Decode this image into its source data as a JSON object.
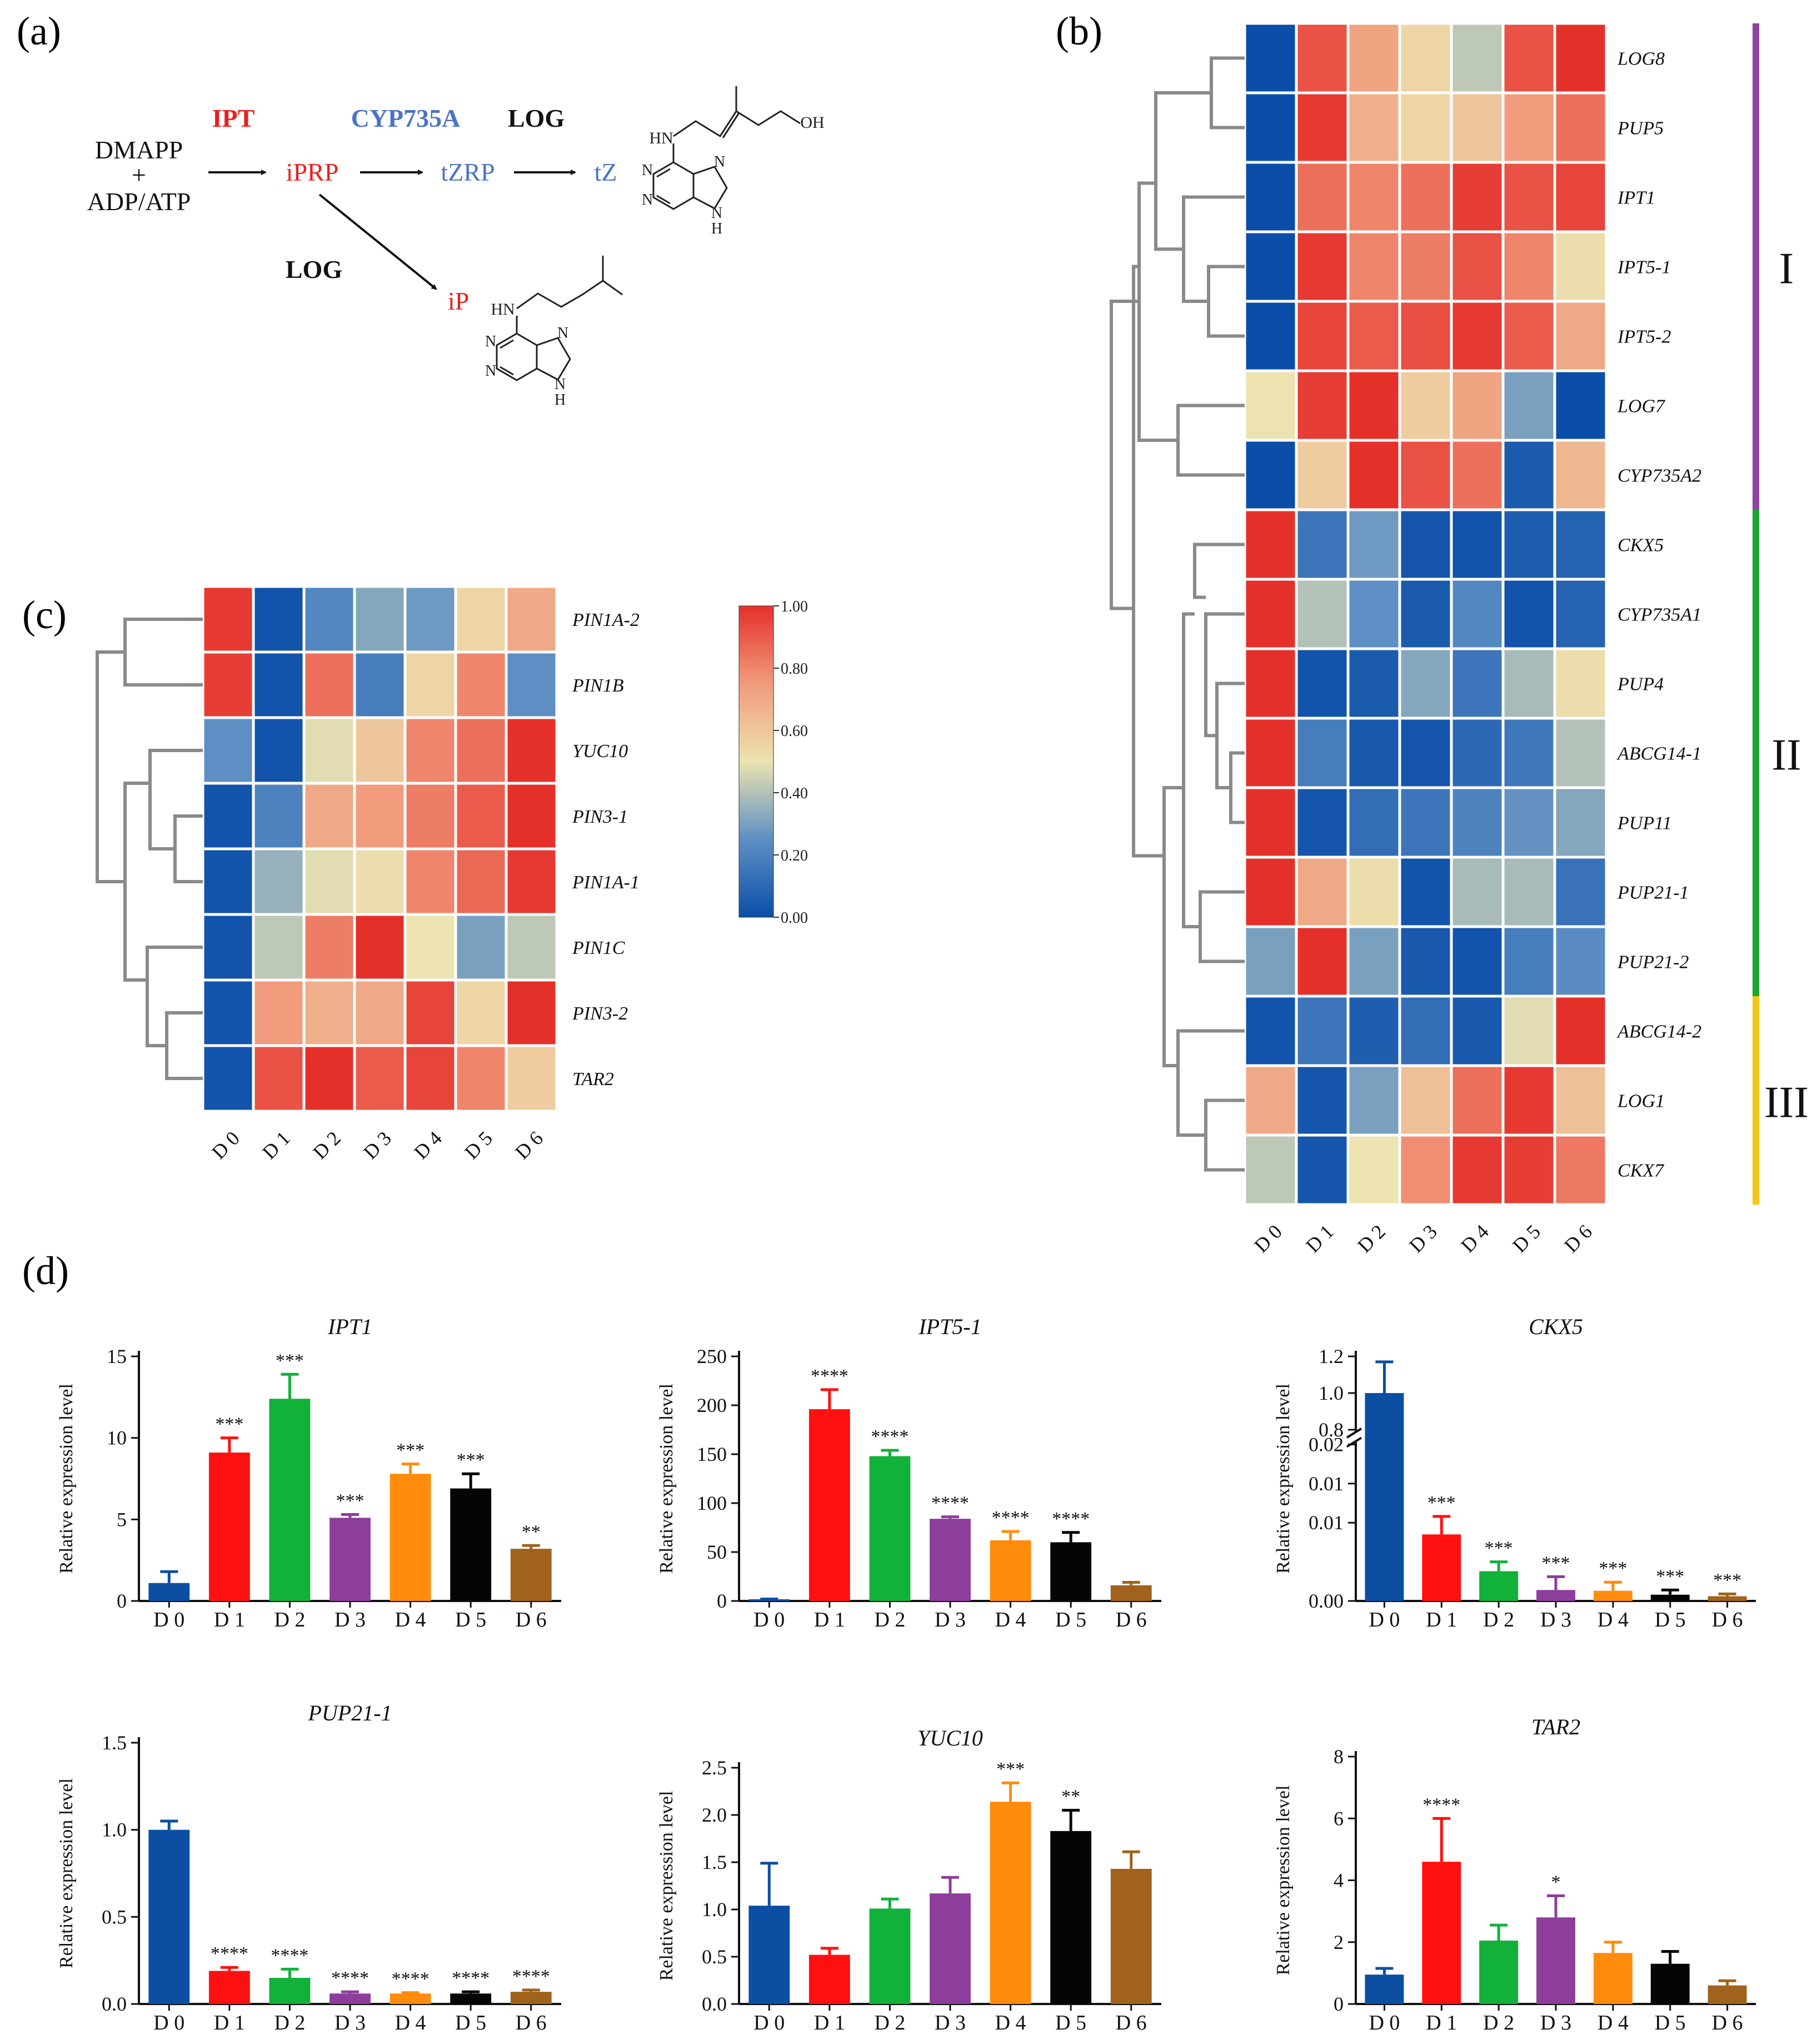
{
  "panel_labels": {
    "a": "(a)",
    "b": "(b)",
    "c": "(c)",
    "d": "(d)"
  },
  "pathway": {
    "substrate_line1": "DMAPP",
    "substrate_plus": "+",
    "substrate_line2": "ADP/ATP",
    "ipt": "IPT",
    "iprp": "iPRP",
    "cyp": "CYP735A",
    "tzrp": "tZRP",
    "log_top": "LOG",
    "tz": "tZ",
    "log_bottom": "LOG",
    "ip": "iP",
    "atom_hn": "HN",
    "atom_oh": "OH",
    "atom_n": "N",
    "atom_h": "H",
    "colors": {
      "red": "#e8201e",
      "blue": "#4a74c4",
      "black": "#111111"
    }
  },
  "colorbar": {
    "ticks": [
      "1.00",
      "0.80",
      "0.60",
      "0.40",
      "0.20",
      "0.00"
    ],
    "min": 0,
    "max": 1
  },
  "chart_data": [
    {
      "id": "b",
      "type": "heatmap",
      "x_labels": [
        "D 0",
        "D 1",
        "D 2",
        "D 3",
        "D 4",
        "D 5",
        "D 6"
      ],
      "rows": [
        {
          "gene": "LOG8",
          "values": [
            0.0,
            0.92,
            0.72,
            0.55,
            0.42,
            0.92,
            1.0
          ]
        },
        {
          "gene": "PUP5",
          "values": [
            0.0,
            0.98,
            0.68,
            0.55,
            0.6,
            0.75,
            0.85
          ]
        },
        {
          "gene": "IPT1",
          "values": [
            0.0,
            0.85,
            0.8,
            0.85,
            0.97,
            0.92,
            0.95
          ]
        },
        {
          "gene": "IPT5-1",
          "values": [
            0.0,
            0.98,
            0.8,
            0.82,
            0.92,
            0.8,
            0.52
          ]
        },
        {
          "gene": "IPT5-2",
          "values": [
            0.0,
            0.95,
            0.9,
            0.93,
            0.98,
            0.9,
            0.7
          ]
        },
        {
          "gene": "LOG7",
          "values": [
            0.5,
            0.97,
            1.0,
            0.58,
            0.72,
            0.3,
            0.0
          ]
        },
        {
          "gene": "CYP735A2",
          "values": [
            0.0,
            0.58,
            1.0,
            0.92,
            0.85,
            0.05,
            0.65
          ]
        },
        {
          "gene": "CKX5",
          "values": [
            1.0,
            0.15,
            0.28,
            0.03,
            0.02,
            0.06,
            0.08
          ]
        },
        {
          "gene": "CYP735A1",
          "values": [
            1.0,
            0.4,
            0.25,
            0.05,
            0.22,
            0.02,
            0.08
          ]
        },
        {
          "gene": "PUP4",
          "values": [
            1.0,
            0.02,
            0.05,
            0.32,
            0.15,
            0.38,
            0.52
          ]
        },
        {
          "gene": "ABCG14-1",
          "values": [
            1.0,
            0.18,
            0.04,
            0.03,
            0.1,
            0.16,
            0.4
          ]
        },
        {
          "gene": "PUP11",
          "values": [
            1.0,
            0.03,
            0.12,
            0.15,
            0.2,
            0.26,
            0.32
          ]
        },
        {
          "gene": "PUP21-1",
          "values": [
            1.0,
            0.7,
            0.52,
            0.02,
            0.38,
            0.38,
            0.14
          ]
        },
        {
          "gene": "PUP21-2",
          "values": [
            0.3,
            1.0,
            0.3,
            0.04,
            0.02,
            0.18,
            0.24
          ]
        },
        {
          "gene": "ABCG14-2",
          "values": [
            0.02,
            0.15,
            0.06,
            0.12,
            0.04,
            0.48,
            1.0
          ]
        },
        {
          "gene": "LOG1",
          "values": [
            0.7,
            0.03,
            0.3,
            0.62,
            0.85,
            0.98,
            0.62
          ]
        },
        {
          "gene": "CKX7",
          "values": [
            0.42,
            0.03,
            0.5,
            0.78,
            0.98,
            0.97,
            0.83
          ]
        }
      ],
      "clusters": [
        {
          "label": "I",
          "rows": [
            0,
            6
          ],
          "color": "#8e44a0"
        },
        {
          "label": "II",
          "rows": [
            7,
            13
          ],
          "color": "#1aa82e"
        },
        {
          "label": "III",
          "rows": [
            14,
            16
          ],
          "color": "#f5c518"
        }
      ]
    },
    {
      "id": "c",
      "type": "heatmap",
      "x_labels": [
        "D 0",
        "D 1",
        "D 2",
        "D 3",
        "D 4",
        "D 5",
        "D 6"
      ],
      "rows": [
        {
          "gene": "PIN1A-2",
          "values": [
            0.98,
            0.02,
            0.22,
            0.32,
            0.28,
            0.55,
            0.7
          ]
        },
        {
          "gene": "PIN1B",
          "values": [
            0.97,
            0.02,
            0.85,
            0.18,
            0.55,
            0.8,
            0.25
          ]
        },
        {
          "gene": "YUC10",
          "values": [
            0.25,
            0.02,
            0.48,
            0.6,
            0.8,
            0.85,
            1.0
          ]
        },
        {
          "gene": "PIN3-1",
          "values": [
            0.02,
            0.2,
            0.7,
            0.75,
            0.82,
            0.9,
            1.0
          ]
        },
        {
          "gene": "PIN1A-1",
          "values": [
            0.02,
            0.35,
            0.48,
            0.52,
            0.8,
            0.87,
            0.98
          ]
        },
        {
          "gene": "PIN1C",
          "values": [
            0.02,
            0.42,
            0.82,
            1.0,
            0.5,
            0.3,
            0.42
          ]
        },
        {
          "gene": "PIN3-2",
          "values": [
            0.02,
            0.75,
            0.68,
            0.7,
            0.95,
            0.55,
            1.0
          ]
        },
        {
          "gene": "TAR2",
          "values": [
            0.02,
            0.92,
            1.0,
            0.9,
            0.95,
            0.8,
            0.58
          ]
        }
      ]
    },
    {
      "id": "d-IPT1",
      "type": "bar",
      "title": "IPT1",
      "ylabel": "Relative expression level",
      "categories": [
        "D 0",
        "D 1",
        "D 2",
        "D 3",
        "D 4",
        "D 5",
        "D 6"
      ],
      "values": [
        1.1,
        9.1,
        12.4,
        5.1,
        7.8,
        6.9,
        3.2
      ],
      "errors": [
        0.7,
        0.9,
        1.5,
        0.2,
        0.6,
        0.9,
        0.2
      ],
      "significance": [
        "",
        "***",
        "***",
        "***",
        "***",
        "***",
        "**"
      ],
      "yticks": [
        "0",
        "5",
        "10",
        "15"
      ],
      "ylim": [
        0,
        15
      ]
    },
    {
      "id": "d-IPT5-1",
      "type": "bar",
      "title": "IPT5-1",
      "ylabel": "Relative expression level",
      "categories": [
        "D 0",
        "D 1",
        "D 2",
        "D 3",
        "D 4",
        "D 5",
        "D 6"
      ],
      "values": [
        1,
        196,
        148,
        84,
        62,
        60,
        16
      ],
      "errors": [
        1,
        20,
        6,
        2,
        9,
        10,
        3
      ],
      "significance": [
        "",
        "****",
        "****",
        "****",
        "****",
        "****",
        ""
      ],
      "yticks": [
        "0",
        "50",
        "100",
        "150",
        "200",
        "250"
      ],
      "ylim": [
        0,
        250
      ]
    },
    {
      "id": "d-CKX5",
      "type": "bar",
      "title": "CKX5",
      "ylabel": "Relative expression level",
      "categories": [
        "D 0",
        "D 1",
        "D 2",
        "D 3",
        "D 4",
        "D 5",
        "D 6"
      ],
      "values": [
        1.0,
        0.0085,
        0.0038,
        0.0014,
        0.0013,
        0.0008,
        0.0006
      ],
      "errors": [
        0.17,
        0.0023,
        0.0012,
        0.0017,
        0.0011,
        0.0006,
        0.0003
      ],
      "significance": [
        "",
        "***",
        "***",
        "***",
        "***",
        "***",
        "***"
      ],
      "yticks": [
        "1.2",
        "1.0",
        "0.8",
        "0.02",
        "0.01",
        "0.01",
        "0.00"
      ],
      "broken_axis": {
        "upper": [
          0.8,
          1.2
        ],
        "lower": [
          0,
          0.02
        ]
      }
    },
    {
      "id": "d-PUP21-1",
      "type": "bar",
      "title": "PUP21-1",
      "ylabel": "Relative expression level",
      "categories": [
        "D 0",
        "D 1",
        "D 2",
        "D 3",
        "D 4",
        "D 5",
        "D 6"
      ],
      "values": [
        1.0,
        0.19,
        0.15,
        0.06,
        0.06,
        0.06,
        0.07
      ],
      "errors": [
        0.05,
        0.02,
        0.05,
        0.01,
        0.005,
        0.01,
        0.01
      ],
      "significance": [
        "",
        "****",
        "****",
        "****",
        "****",
        "****",
        "****"
      ],
      "yticks": [
        "0.0",
        "0.5",
        "1.0",
        "1.5"
      ],
      "ylim": [
        0,
        1.5
      ]
    },
    {
      "id": "d-YUC10",
      "type": "bar",
      "title": "YUC10",
      "ylabel": "Relative expression level",
      "categories": [
        "D 0",
        "D 1",
        "D 2",
        "D 3",
        "D 4",
        "D 5",
        "D 6"
      ],
      "values": [
        1.04,
        0.52,
        1.01,
        1.17,
        2.14,
        1.83,
        1.43
      ],
      "errors": [
        0.45,
        0.07,
        0.1,
        0.17,
        0.2,
        0.22,
        0.18
      ],
      "significance": [
        "",
        "",
        "",
        "",
        "***",
        "**",
        ""
      ],
      "yticks": [
        "0.0",
        "0.5",
        "1.0",
        "1.5",
        "2.0",
        "2.5"
      ],
      "ylim": [
        0,
        2.5
      ]
    },
    {
      "id": "d-TAR2",
      "type": "bar",
      "title": "TAR2",
      "ylabel": "Relative expression level",
      "categories": [
        "D 0",
        "D 1",
        "D 2",
        "D 3",
        "D 4",
        "D 5",
        "D 6"
      ],
      "values": [
        0.95,
        4.6,
        2.05,
        2.8,
        1.65,
        1.3,
        0.6
      ],
      "errors": [
        0.2,
        1.4,
        0.5,
        0.7,
        0.35,
        0.4,
        0.15
      ],
      "significance": [
        "",
        "****",
        "",
        "*",
        "",
        "",
        ""
      ],
      "yticks": [
        "0",
        "2",
        "4",
        "6",
        "8"
      ],
      "ylim": [
        0,
        8
      ]
    }
  ],
  "bar_colors": [
    "#0b4ea2",
    "#ff1010",
    "#12b13a",
    "#8d3d9b",
    "#ff8c0c",
    "#050505",
    "#a0621c"
  ]
}
